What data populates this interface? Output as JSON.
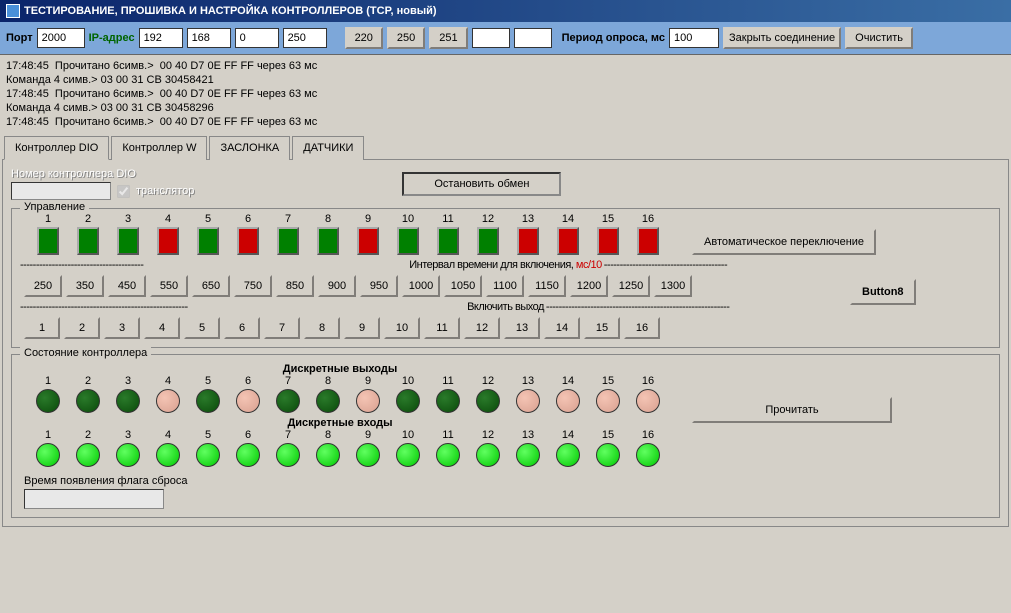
{
  "title": "ТЕСТИРОВАНИЕ, ПРОШИВКА И НАСТРОЙКА КОНТРОЛЛЕРОВ  (TCP, новый)",
  "toolbar": {
    "port_label": "Порт",
    "port_value": "2000",
    "ip_label": "IP-адрес",
    "ip1": "192",
    "ip2": "168",
    "ip3": "0",
    "ip4": "250",
    "btn_220": "220",
    "btn_250": "250",
    "btn_251": "251",
    "blank1": "",
    "blank2": "",
    "period_label": "Период опроса, мс",
    "period_value": "100",
    "close_btn": "Закрыть соединение",
    "clear_btn": "Очистить"
  },
  "log": "17:48:45  Прочитано 6симв.>  00 40 D7 0E FF FF через 63 мс\nКоманда 4 симв.> 03 00 31 CB 30458421\n17:48:45  Прочитано 6симв.>  00 40 D7 0E FF FF через 63 мс\nКоманда 4 симв.> 03 00 31 CB 30458296\n17:48:45  Прочитано 6симв.>  00 40 D7 0E FF FF через 63 мс",
  "tabs": {
    "t1": "Контроллер DIO",
    "t2": "Контроллер W",
    "t3": "ЗАСЛОНКА",
    "t4": "ДАТЧИКИ"
  },
  "dio": {
    "num_label": "Номер контроллера DIO",
    "translator": "транслятор",
    "stop_btn": "Остановить обмен",
    "ctrl_group": "Управление",
    "ctrl_cols": [
      "1",
      "2",
      "3",
      "4",
      "5",
      "6",
      "7",
      "8",
      "9",
      "10",
      "11",
      "12",
      "13",
      "14",
      "15",
      "16"
    ],
    "ctrl_colors": [
      "g",
      "g",
      "g",
      "r",
      "g",
      "r",
      "g",
      "g",
      "r",
      "g",
      "g",
      "g",
      "r",
      "r",
      "r",
      "r"
    ],
    "interval_dash_pre": "---------------------------------------",
    "interval_label": "Интервал времени для включения, ",
    "interval_unit": "мс/10",
    "interval_dash_post": "---------------------------------------",
    "intervals": [
      "250",
      "350",
      "450",
      "550",
      "650",
      "750",
      "850",
      "900",
      "950",
      "1000",
      "1050",
      "1100",
      "1150",
      "1200",
      "1250",
      "1300"
    ],
    "out_dash_pre": "-----------------------------------------------------",
    "out_label": "Включить  выход",
    "out_dash_post": "----------------------------------------------------------",
    "outs": [
      "1",
      "2",
      "3",
      "4",
      "5",
      "6",
      "7",
      "8",
      "9",
      "10",
      "11",
      "12",
      "13",
      "14",
      "15",
      "16"
    ],
    "auto_btn": "Автоматическое переключение",
    "button8": "Button8",
    "state_group": "Состояние контроллера",
    "disc_out": "Дискретные выходы",
    "disc_out_labels": [
      "1",
      "2",
      "3",
      "4",
      "5",
      "6",
      "7",
      "8",
      "9",
      "10",
      "11",
      "12",
      "13",
      "14",
      "15",
      "16"
    ],
    "disc_out_leds": [
      "dg",
      "dg",
      "dg",
      "pk",
      "dg",
      "pk",
      "dg",
      "dg",
      "pk",
      "dg",
      "dg",
      "dg",
      "pk",
      "pk",
      "pk",
      "pk"
    ],
    "disc_in": "Дискретные входы",
    "disc_in_labels": [
      "1",
      "2",
      "3",
      "4",
      "5",
      "6",
      "7",
      "8",
      "9",
      "10",
      "11",
      "12",
      "13",
      "14",
      "15",
      "16"
    ],
    "disc_in_leds": [
      "bg",
      "bg",
      "bg",
      "bg",
      "bg",
      "bg",
      "bg",
      "bg",
      "bg",
      "bg",
      "bg",
      "bg",
      "bg",
      "bg",
      "bg",
      "bg"
    ],
    "read_btn": "Прочитать",
    "flag_label": "Время появления флага сброса"
  }
}
